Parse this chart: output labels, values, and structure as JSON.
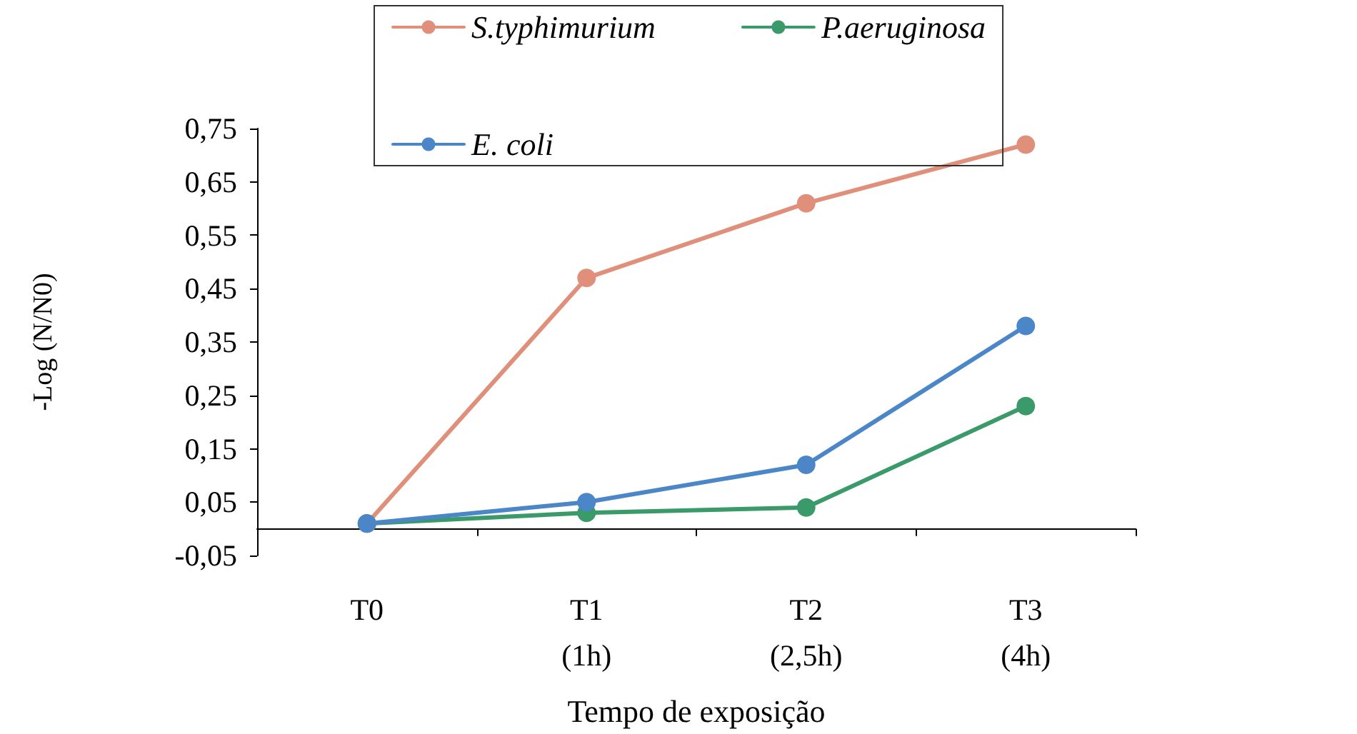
{
  "chart_data": {
    "type": "line",
    "xlabel": "Tempo de exposição",
    "ylabel": "-Log (N/N0)",
    "categories": [
      "T0",
      "T1\n(1h)",
      "T2\n(2,5h)",
      "T3\n(4h)"
    ],
    "series": [
      {
        "name": "S.typhimurium",
        "color": "#e0907a",
        "values": [
          0.01,
          0.47,
          0.61,
          0.72
        ]
      },
      {
        "name": "P.aeruginosa",
        "color": "#3a9a6a",
        "values": [
          0.01,
          0.03,
          0.04,
          0.23
        ]
      },
      {
        "name": "E. coli",
        "color": "#4a86c8",
        "values": [
          0.01,
          0.05,
          0.12,
          0.38
        ]
      }
    ],
    "ylim": [
      -0.05,
      0.75
    ],
    "yticks": [
      {
        "value": -0.05,
        "label": "-0,05"
      },
      {
        "value": 0.05,
        "label": "0,05"
      },
      {
        "value": 0.15,
        "label": "0,15"
      },
      {
        "value": 0.25,
        "label": "0,25"
      },
      {
        "value": 0.35,
        "label": "0,35"
      },
      {
        "value": 0.45,
        "label": "0,45"
      },
      {
        "value": 0.55,
        "label": "0,55"
      },
      {
        "value": 0.65,
        "label": "0,65"
      },
      {
        "value": 0.75,
        "label": "0,75"
      }
    ],
    "grid": false,
    "legend": "top",
    "marker": "circle",
    "line_style": "solid"
  }
}
